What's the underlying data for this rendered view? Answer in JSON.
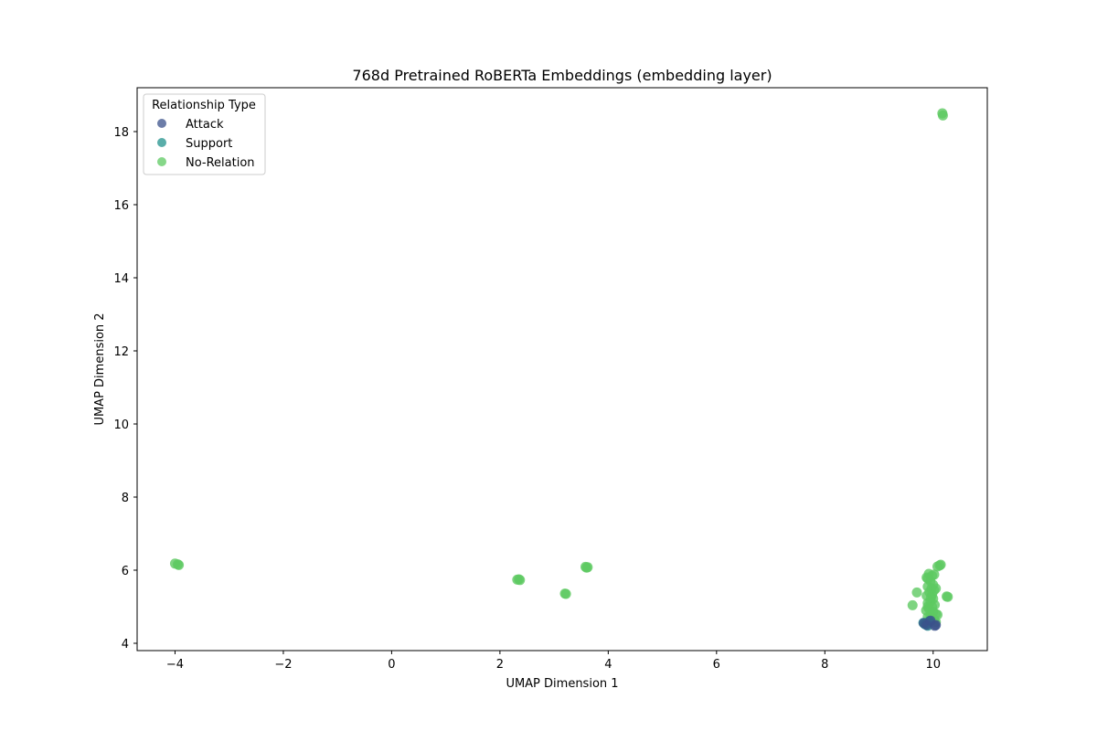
{
  "chart_data": {
    "type": "scatter",
    "title": "768d Pretrained RoBERTa Embeddings (embedding layer)",
    "xlabel": "UMAP Dimension 1",
    "ylabel": "UMAP Dimension 2",
    "xlim": [
      -4.7,
      11.0
    ],
    "ylim": [
      3.8,
      19.2
    ],
    "xticks": [
      -4,
      -2,
      0,
      2,
      4,
      6,
      8,
      10
    ],
    "yticks": [
      4,
      6,
      8,
      10,
      12,
      14,
      16,
      18
    ],
    "xtick_labels": [
      "−4",
      "−2",
      "0",
      "2",
      "4",
      "6",
      "8",
      "10"
    ],
    "ytick_labels": [
      "4",
      "6",
      "8",
      "10",
      "12",
      "14",
      "16",
      "18"
    ],
    "grid": false,
    "legend": {
      "title": "Relationship Type",
      "placement": "top-left",
      "entries": [
        "Attack",
        "Support",
        "No-Relation"
      ]
    },
    "series": [
      {
        "name": "Attack",
        "color": "#3b518b",
        "points": [
          [
            9.83,
            4.55
          ],
          [
            9.88,
            4.5
          ],
          [
            10.05,
            4.5
          ],
          [
            10.03,
            4.48
          ],
          [
            9.95,
            4.62
          ]
        ]
      },
      {
        "name": "Support",
        "color": "#21918c",
        "points": [
          [
            9.85,
            4.52
          ],
          [
            9.9,
            4.48
          ],
          [
            9.82,
            4.56
          ],
          [
            9.93,
            4.6
          ],
          [
            9.88,
            4.54
          ]
        ]
      },
      {
        "name": "No-Relation",
        "color": "#5ec962",
        "points": [
          [
            -4.0,
            6.18
          ],
          [
            -3.95,
            6.16
          ],
          [
            -3.93,
            6.14
          ],
          [
            2.32,
            5.74
          ],
          [
            2.37,
            5.73
          ],
          [
            2.35,
            5.75
          ],
          [
            3.2,
            5.36
          ],
          [
            3.22,
            5.35
          ],
          [
            3.58,
            6.09
          ],
          [
            3.6,
            6.07
          ],
          [
            3.62,
            6.08
          ],
          [
            10.17,
            18.5
          ],
          [
            10.18,
            18.44
          ],
          [
            10.12,
            6.13
          ],
          [
            10.08,
            6.1
          ],
          [
            10.14,
            6.15
          ],
          [
            10.25,
            5.28
          ],
          [
            10.27,
            5.27
          ],
          [
            9.62,
            5.04
          ],
          [
            9.7,
            5.39
          ],
          [
            9.92,
            5.9
          ],
          [
            9.98,
            5.85
          ],
          [
            9.88,
            5.8
          ],
          [
            10.02,
            5.88
          ],
          [
            9.95,
            5.7
          ],
          [
            10.0,
            5.6
          ],
          [
            9.9,
            5.55
          ],
          [
            9.97,
            5.5
          ],
          [
            10.02,
            5.45
          ],
          [
            9.93,
            5.4
          ],
          [
            9.98,
            5.33
          ],
          [
            9.88,
            5.3
          ],
          [
            10.0,
            5.22
          ],
          [
            9.95,
            5.15
          ],
          [
            9.9,
            5.1
          ],
          [
            10.03,
            5.05
          ],
          [
            9.98,
            5.0
          ],
          [
            9.92,
            4.95
          ],
          [
            9.87,
            4.9
          ],
          [
            10.0,
            4.86
          ],
          [
            10.05,
            4.8
          ],
          [
            10.08,
            4.78
          ],
          [
            9.95,
            4.75
          ],
          [
            9.9,
            4.72
          ],
          [
            9.97,
            4.68
          ],
          [
            10.02,
            4.65
          ],
          [
            9.93,
            4.62
          ],
          [
            10.05,
            4.58
          ],
          [
            9.9,
            5.0
          ],
          [
            10.05,
            5.5
          ],
          [
            9.9,
            5.77
          ],
          [
            9.96,
            5.25
          ]
        ]
      }
    ]
  }
}
